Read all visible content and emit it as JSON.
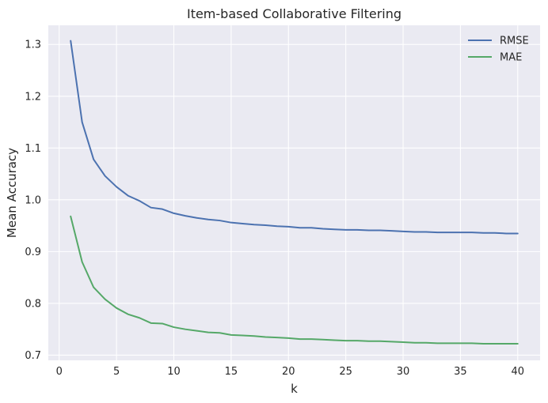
{
  "chart_data": {
    "type": "line",
    "title": "Item-based Collaborative Filtering",
    "xlabel": "k",
    "ylabel": "Mean Accuracy",
    "xlim": [
      -0.95,
      41.95
    ],
    "ylim": [
      0.69,
      1.337
    ],
    "xticks": [
      0,
      5,
      10,
      15,
      20,
      25,
      30,
      35,
      40
    ],
    "yticks": [
      0.7,
      0.8,
      0.9,
      1.0,
      1.1,
      1.2,
      1.3
    ],
    "ytick_labels": [
      "0.7",
      "0.8",
      "0.9",
      "1.0",
      "1.1",
      "1.2",
      "1.3"
    ],
    "grid": true,
    "legend_position": "upper-right",
    "x": [
      1,
      2,
      3,
      4,
      5,
      6,
      7,
      8,
      9,
      10,
      11,
      12,
      13,
      14,
      15,
      16,
      17,
      18,
      19,
      20,
      21,
      22,
      23,
      24,
      25,
      26,
      27,
      28,
      29,
      30,
      31,
      32,
      33,
      34,
      35,
      36,
      37,
      38,
      39,
      40
    ],
    "series": [
      {
        "name": "RMSE",
        "color": "#4c72b0",
        "values": [
          1.307,
          1.15,
          1.078,
          1.046,
          1.025,
          1.008,
          0.998,
          0.985,
          0.982,
          0.974,
          0.969,
          0.965,
          0.962,
          0.96,
          0.956,
          0.954,
          0.952,
          0.951,
          0.949,
          0.948,
          0.946,
          0.946,
          0.944,
          0.943,
          0.942,
          0.942,
          0.941,
          0.941,
          0.94,
          0.939,
          0.938,
          0.938,
          0.937,
          0.937,
          0.937,
          0.937,
          0.936,
          0.936,
          0.935,
          0.935
        ]
      },
      {
        "name": "MAE",
        "color": "#55a868",
        "values": [
          0.968,
          0.88,
          0.831,
          0.808,
          0.791,
          0.779,
          0.772,
          0.762,
          0.761,
          0.754,
          0.75,
          0.747,
          0.744,
          0.743,
          0.739,
          0.738,
          0.737,
          0.735,
          0.734,
          0.733,
          0.731,
          0.731,
          0.73,
          0.729,
          0.728,
          0.728,
          0.727,
          0.727,
          0.726,
          0.725,
          0.724,
          0.724,
          0.723,
          0.723,
          0.723,
          0.723,
          0.722,
          0.722,
          0.722,
          0.722
        ]
      }
    ]
  }
}
